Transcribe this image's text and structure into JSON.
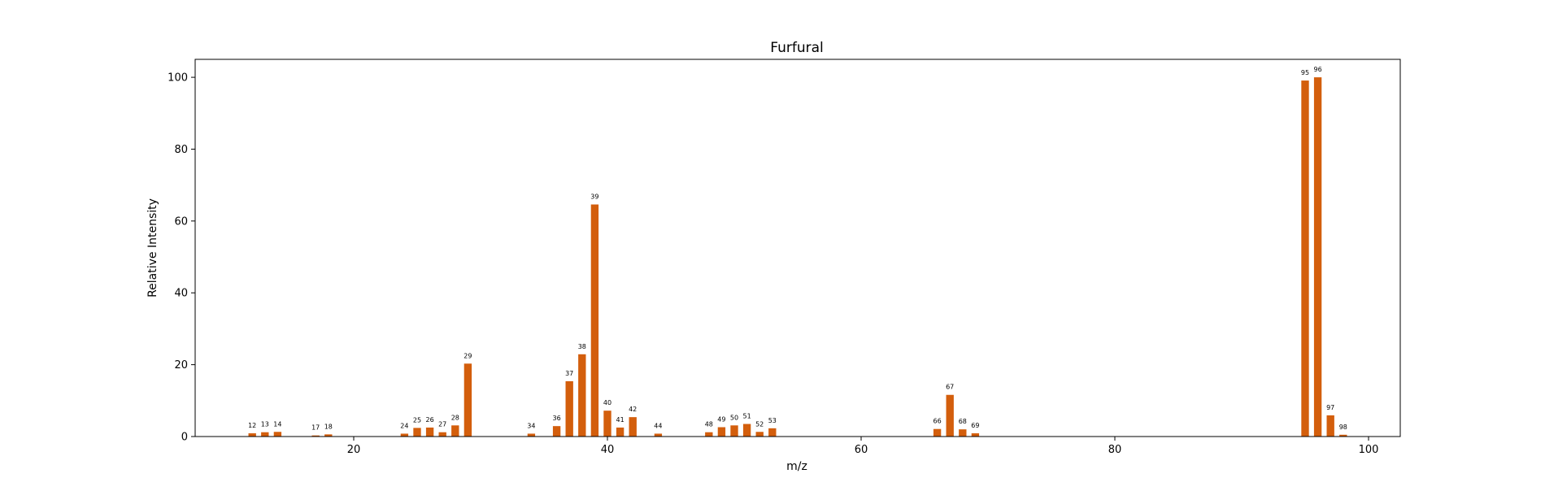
{
  "chart_data": {
    "type": "bar",
    "title": "Furfural",
    "xlabel": "m/z",
    "ylabel": "Relative Intensity",
    "xlim": [
      7.5,
      102.5
    ],
    "ylim": [
      0,
      105
    ],
    "x_ticks": [
      20,
      40,
      60,
      80,
      100
    ],
    "y_ticks": [
      0,
      20,
      40,
      60,
      80,
      100
    ],
    "grid": false,
    "legend": "none",
    "bar_color": "#D35E0C",
    "series": [
      {
        "x": [
          12,
          13,
          14,
          17,
          18,
          24,
          25,
          26,
          27,
          28,
          29,
          34,
          36,
          37,
          38,
          39,
          40,
          41,
          42,
          44,
          48,
          49,
          50,
          51,
          52,
          53,
          66,
          67,
          68,
          69,
          95,
          96,
          97,
          98
        ],
        "values": [
          0.9,
          1.2,
          1.3,
          0.3,
          0.6,
          0.8,
          2.4,
          2.5,
          1.2,
          3.1,
          20.3,
          0.8,
          2.9,
          15.4,
          22.9,
          64.6,
          7.2,
          2.5,
          5.4,
          0.8,
          1.2,
          2.6,
          3.1,
          3.5,
          1.3,
          2.3,
          2.1,
          11.6,
          2.0,
          0.9,
          99.1,
          100.0,
          5.9,
          0.5
        ],
        "labels": [
          "12",
          "13",
          "14",
          "17",
          "18",
          "24",
          "25",
          "26",
          "27",
          "28",
          "29",
          "34",
          "36",
          "37",
          "38",
          "39",
          "40",
          "41",
          "42",
          "44",
          "48",
          "49",
          "50",
          "51",
          "52",
          "53",
          "66",
          "67",
          "68",
          "69",
          "95",
          "96",
          "97",
          "98"
        ]
      }
    ]
  }
}
